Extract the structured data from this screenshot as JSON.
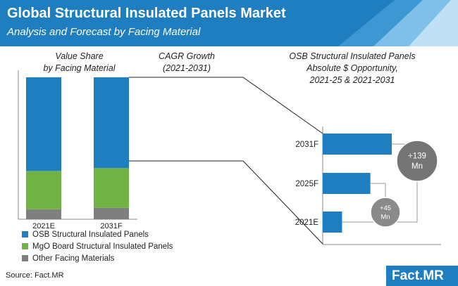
{
  "header": {
    "title": "Global Structural Insulated Panels Market",
    "subtitle": "Analysis and Forecast by Facing Material"
  },
  "columns": {
    "share_title": "Value Share\nby Facing Material",
    "cagr_title": "CAGR Growth\n(2021-2031)",
    "opportunity_title": "OSB Structural Insulated Panels\nAbsolute $ Opportunity,\n2021-25 & 2021-2031"
  },
  "colors": {
    "osb": "#1e7ec0",
    "mgo": "#70b244",
    "other": "#7f7f7f",
    "bubble_large": "#757575",
    "bubble_small": "#8a8a8a",
    "header": "#1e7ec0"
  },
  "chart_data": [
    {
      "type": "bar",
      "stacked": true,
      "categories": [
        "2021E",
        "2031F"
      ],
      "series": [
        {
          "name": "OSB Structural Insulated Panels",
          "values": [
            66,
            64
          ]
        },
        {
          "name": "MgO Board Structural Insulated Panels",
          "values": [
            27,
            28
          ]
        },
        {
          "name": "Other Facing Materials",
          "values": [
            7,
            8
          ]
        }
      ],
      "ylim": [
        0,
        100
      ]
    },
    {
      "type": "bar",
      "orientation": "horizontal",
      "categories": [
        "2031F",
        "2025F",
        "2021E"
      ],
      "values": [
        100,
        69,
        28
      ],
      "annotations": [
        {
          "text": "+139\nMn",
          "span": [
            "2021E",
            "2031F"
          ]
        },
        {
          "text": "+45\nMn",
          "span": [
            "2021E",
            "2025F"
          ]
        }
      ]
    }
  ],
  "footer": {
    "source": "Source: Fact.MR",
    "logo_main": "Fact.",
    "logo_accent": "MR"
  }
}
